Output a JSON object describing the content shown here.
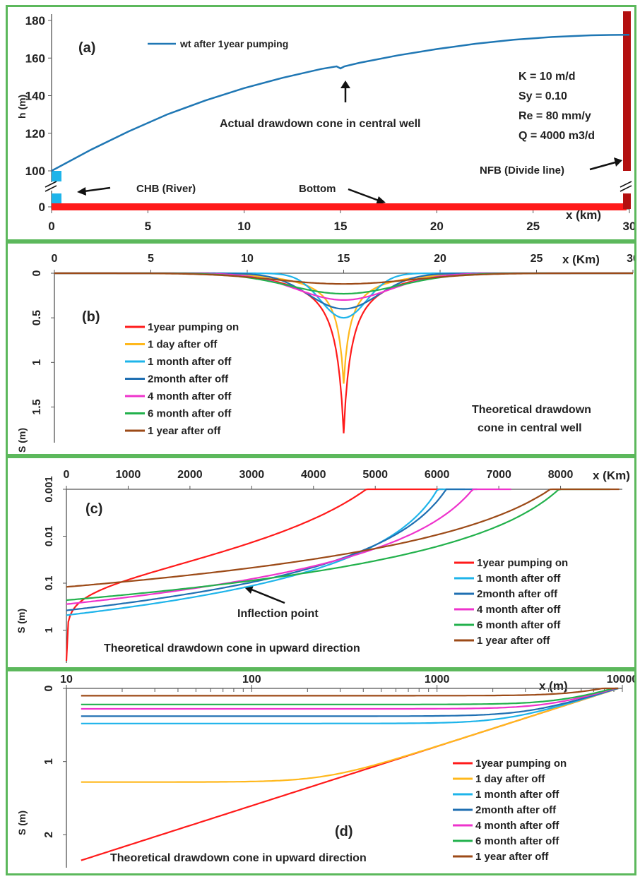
{
  "chart_data": [
    {
      "panel": "(a)",
      "type": "line",
      "xlabel": "x (km)",
      "ylabel": "h (m)",
      "xlim": [
        0,
        30
      ],
      "y_ticks": [
        0,
        100,
        120,
        140,
        160,
        180
      ],
      "x_ticks": [
        0,
        5,
        10,
        15,
        20,
        25,
        30
      ],
      "axis_break": true,
      "series": [
        {
          "name": "wt after 1year pumping",
          "color": "#1f77b4",
          "x": [
            0,
            2,
            4,
            6,
            8,
            10,
            12,
            14,
            14.8,
            15,
            15.2,
            16,
            18,
            20,
            22,
            24,
            26,
            28,
            29,
            30
          ],
          "y": [
            100,
            111,
            121,
            130,
            137.5,
            144,
            149.5,
            154.2,
            155.6,
            154.5,
            155.6,
            157.5,
            161.5,
            164.8,
            167.6,
            169.8,
            171.2,
            172.1,
            172.3,
            172.4
          ]
        }
      ],
      "parameters": [
        "K = 10 m/d",
        "Sy = 0.10",
        "Re = 80 mm/y",
        "Q = 4000 m3/d"
      ],
      "annotations": {
        "cone": "Actual drawdown cone in central well",
        "chb": "CHB (River)",
        "bottom": "Bottom",
        "nfb": "NFB (Divide line)"
      }
    },
    {
      "panel": "(b)",
      "type": "line",
      "xlabel": "x (Km)",
      "ylabel": "S (m)",
      "xlim": [
        0,
        30
      ],
      "ylim": [
        0,
        1.9
      ],
      "x_ticks": [
        0,
        5,
        10,
        15,
        20,
        25,
        30
      ],
      "y_ticks": [
        0,
        0.5,
        1,
        1.5
      ],
      "y_inverted": true,
      "center": 15,
      "series": [
        {
          "name": "1year pumping on",
          "color": "#ff1a1a",
          "peak": 1.9
        },
        {
          "name": "1 day after off",
          "color": "#ffb81c",
          "peak": 1.3
        },
        {
          "name": "1 month after off",
          "color": "#1eb4ea",
          "peak": 0.5
        },
        {
          "name": "2month after off",
          "color": "#1f6fb2",
          "peak": 0.4
        },
        {
          "name": "4 month after off",
          "color": "#ee33cc",
          "peak": 0.3
        },
        {
          "name": "6 month after off",
          "color": "#22b14c",
          "peak": 0.23
        },
        {
          "name": "1 year after off",
          "color": "#9c4a17",
          "peak": 0.12
        }
      ],
      "annotation": [
        "Theoretical drawdown",
        "cone in central well"
      ]
    },
    {
      "panel": "(c)",
      "type": "line",
      "xlabel": "x (Km)",
      "ylabel": "S (m)",
      "xlim": [
        0,
        9000
      ],
      "ylim": [
        0.001,
        5
      ],
      "y_scale": "log",
      "y_inverted": true,
      "x_ticks": [
        0,
        1000,
        2000,
        3000,
        4000,
        5000,
        6000,
        7000,
        8000
      ],
      "y_ticks": [
        0.001,
        0.01,
        0.1,
        1
      ],
      "y_tick_labels": [
        "0.001",
        "0.01",
        "0.1",
        "1"
      ],
      "series": [
        {
          "name": "1year pumping on",
          "color": "#ff1a1a",
          "s0": 4.5,
          "x_end": 6100
        },
        {
          "name": "1 month after off",
          "color": "#1eb4ea",
          "s0": 0.48,
          "x_end": 6450
        },
        {
          "name": "2month after off",
          "color": "#1f6fb2",
          "s0": 0.38,
          "x_end": 6650
        },
        {
          "name": "4 month after off",
          "color": "#ee33cc",
          "s0": 0.28,
          "x_end": 7200
        },
        {
          "name": "6 month after off",
          "color": "#22b14c",
          "s0": 0.23,
          "x_end": 8800
        },
        {
          "name": "1 year after off",
          "color": "#9c4a17",
          "s0": 0.12,
          "x_end": 8950
        }
      ],
      "annotations": {
        "inflection": "Inflection point",
        "caption": "Theoretical drawdown cone in upward direction"
      }
    },
    {
      "panel": "(d)",
      "type": "line",
      "xlabel": "x (m)",
      "ylabel": "S (m)",
      "xlim": [
        10,
        10000
      ],
      "x_scale": "log",
      "ylim": [
        0,
        2.45
      ],
      "y_inverted": true,
      "x_ticks": [
        10,
        100,
        1000,
        10000
      ],
      "y_ticks": [
        0,
        1,
        2
      ],
      "series": [
        {
          "name": "1year pumping on",
          "color": "#ff1a1a",
          "s0": 2.35
        },
        {
          "name": "1 day after off",
          "color": "#ffb81c",
          "s0": 1.28
        },
        {
          "name": "1 month after off",
          "color": "#1eb4ea",
          "s0": 0.48
        },
        {
          "name": "2month after off",
          "color": "#1f6fb2",
          "s0": 0.38
        },
        {
          "name": "4 month after off",
          "color": "#ee33cc",
          "s0": 0.28
        },
        {
          "name": "6 month after off",
          "color": "#22b14c",
          "s0": 0.22
        },
        {
          "name": "1 year after off",
          "color": "#9c4a17",
          "s0": 0.1
        }
      ],
      "caption": "Theoretical drawdown cone in upward direction"
    }
  ],
  "colors": {
    "frame": "#5cb85c",
    "bottom_bar": "#ff1a1a",
    "nfb_bar": "#b31010",
    "chb_bar": "#1eb4ea"
  }
}
